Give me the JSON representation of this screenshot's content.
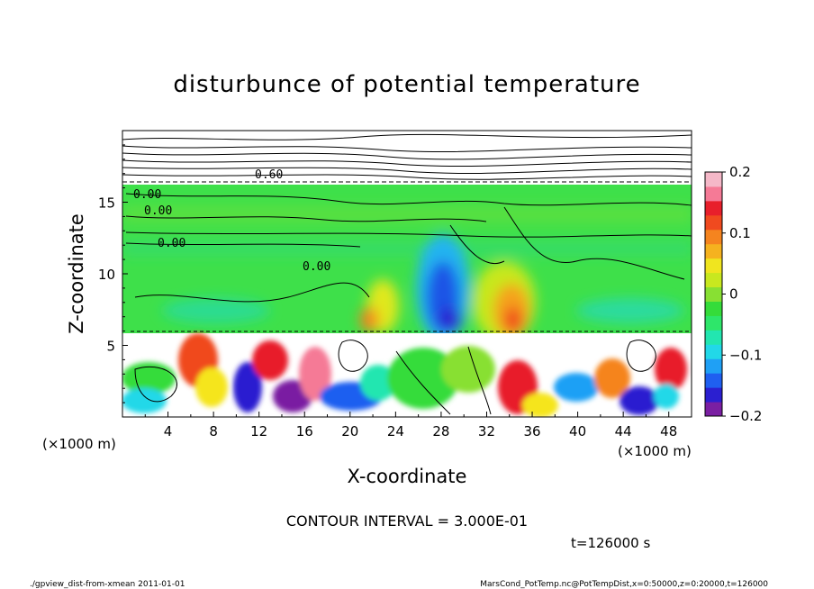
{
  "chart_data": {
    "type": "heatmap",
    "title": "disturbunce of potential temperature",
    "xlabel": "X-coordinate",
    "ylabel": "Z-coordinate",
    "x_unit": "(×1000 m)",
    "y_unit": "(×1000 m)",
    "xlim": [
      0,
      50
    ],
    "ylim": [
      0,
      20
    ],
    "x_ticks": [
      "4",
      "8",
      "12",
      "16",
      "20",
      "24",
      "28",
      "32",
      "36",
      "40",
      "44",
      "48"
    ],
    "y_ticks": [
      "5",
      "10",
      "15"
    ],
    "colorbar": {
      "range": [
        -0.2,
        0.2
      ],
      "tick_labels": [
        "0.2",
        "0.1",
        "0",
        "−0.1",
        "−0.2"
      ],
      "colors": [
        "#7a1fa2",
        "#2b1fd0",
        "#1f5ff0",
        "#1fa0f5",
        "#22d8e8",
        "#22e6b0",
        "#2ee66a",
        "#35dc3a",
        "#88e033",
        "#c8e81f",
        "#f0e51f",
        "#f5b21f",
        "#f5841f",
        "#f04a1f",
        "#e81f2b",
        "#f57a96",
        "#f5b8c8"
      ]
    },
    "contour_labels": [
      "0.60",
      "0.00",
      "0.00",
      "0.00",
      "0.00"
    ],
    "contour_interval_text": "CONTOUR INTERVAL = 3.000E-01",
    "time_text": "t=126000 s"
  },
  "footer": {
    "left": "./gpview_dist-from-xmean  2011-01-01",
    "right": "MarsCond_PotTemp.nc@PotTempDist,x=0:50000,z=0:20000,t=126000"
  }
}
